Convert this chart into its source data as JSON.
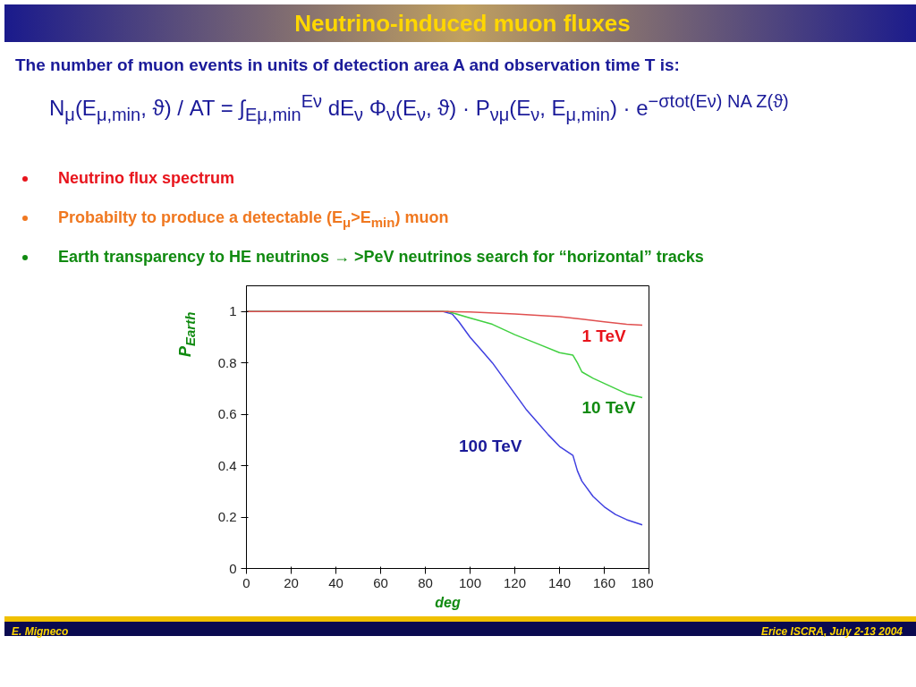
{
  "chart_data": {
    "type": "line",
    "title": "Neutrino-induced  muon fluxes",
    "subtitle": "The number of muon events in units of detection area A and observation time T is:",
    "annotations": [
      "N$_{μ}$(E$_{μ,min}$, ϑ) / AT = ∫$_{Eμ,min}$$^{Eν}$ dE$_{ν}$ Φ$_{ν}$(E$_{ν}$, ϑ) · P$_{νμ}$(E$_{ν}$, E$_{μ,min}$) · e$^{−σtot(Eν) NA Z(ϑ)}$",
      "Neutrino flux spectrum",
      "Probabilty to produce a detectable (E$_{μ}$>E$_{min}$) muon",
      "Earth transparency to HE neutrinos → >PeV neutrinos search for  “horizontal” tracks",
      "E. Migneco",
      "Erice ISCRA, July 2-13  2004"
    ],
    "xlabel": "deg",
    "ylabel": "P$_{Earth}$",
    "xlim": [
      0,
      180
    ],
    "ylim": [
      0,
      1.1
    ],
    "xticks": [
      0,
      20,
      40,
      60,
      80,
      100,
      120,
      140,
      160,
      180
    ],
    "yticks": [
      0,
      0.2,
      0.4,
      0.6,
      0.8,
      1
    ],
    "grid": false,
    "marker": "none",
    "line_style": "solid",
    "series": [
      {
        "name": "1 TeV",
        "color": "#e05050",
        "x": [
          0,
          90,
          100,
          120,
          140,
          150,
          160,
          170,
          177
        ],
        "values": [
          1,
          1,
          0.998,
          0.99,
          0.98,
          0.97,
          0.96,
          0.95,
          0.947
        ]
      },
      {
        "name": "10 TeV",
        "color": "#40d040",
        "x": [
          0,
          90,
          100,
          110,
          120,
          130,
          140,
          146,
          148,
          150,
          155,
          160,
          170,
          177
        ],
        "values": [
          1,
          1,
          0.975,
          0.95,
          0.91,
          0.875,
          0.84,
          0.83,
          0.8,
          0.765,
          0.74,
          0.72,
          0.68,
          0.665
        ]
      },
      {
        "name": "100 TeV",
        "color": "#4040e0",
        "x": [
          0,
          88,
          92,
          95,
          100,
          105,
          110,
          115,
          120,
          125,
          130,
          135,
          140,
          146,
          148,
          150,
          155,
          160,
          165,
          170,
          177
        ],
        "values": [
          1,
          1,
          0.99,
          0.96,
          0.9,
          0.85,
          0.8,
          0.74,
          0.68,
          0.62,
          0.57,
          0.52,
          0.475,
          0.44,
          0.38,
          0.34,
          0.28,
          0.24,
          0.21,
          0.19,
          0.17
        ]
      }
    ]
  }
}
